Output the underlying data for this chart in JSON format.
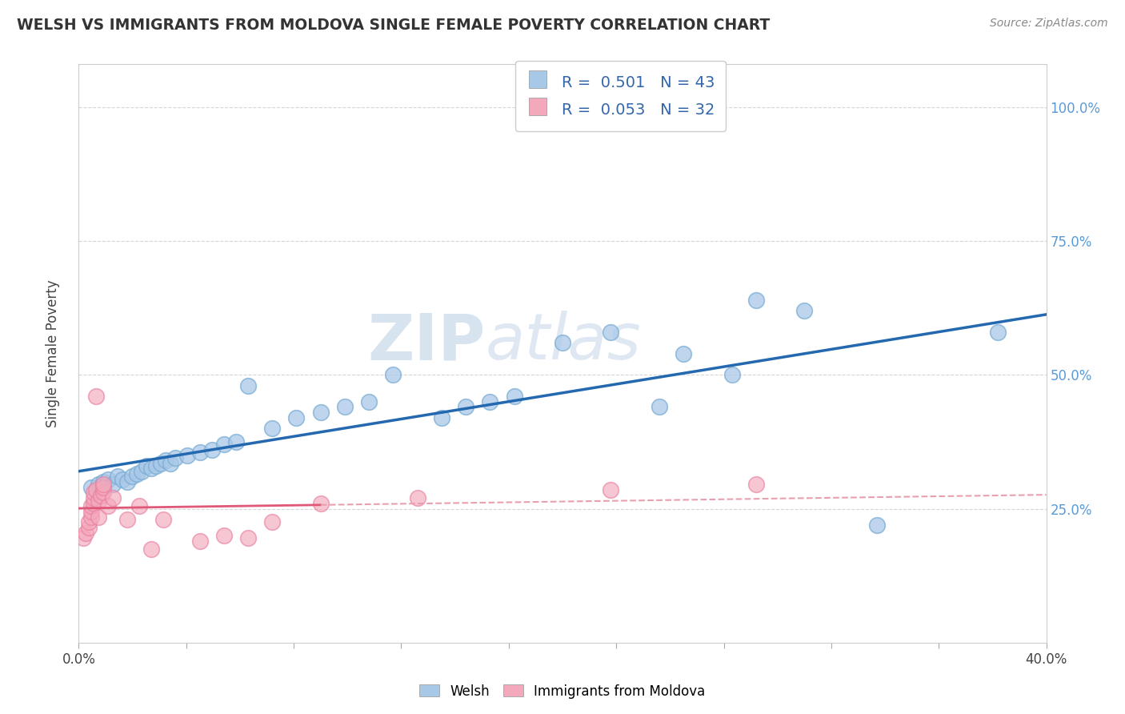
{
  "title": "WELSH VS IMMIGRANTS FROM MOLDOVA SINGLE FEMALE POVERTY CORRELATION CHART",
  "source": "Source: ZipAtlas.com",
  "ylabel": "Single Female Poverty",
  "ytick_values": [
    0.25,
    0.5,
    0.75,
    1.0
  ],
  "xlim": [
    0.0,
    0.4
  ],
  "ylim": [
    0.0,
    1.08
  ],
  "legend_welsh_r": "0.501",
  "legend_welsh_n": "43",
  "legend_moldova_r": "0.053",
  "legend_moldova_n": "32",
  "welsh_color": "#a8c8e8",
  "welsh_edge_color": "#7aadd4",
  "welsh_line_color": "#2468b0",
  "moldova_color": "#f4a8bc",
  "moldova_edge_color": "#e880a0",
  "moldova_line_color": "#e05878",
  "moldova_dash_color": "#e8a0b0",
  "watermark": "ZIPatlas",
  "welsh_x": [
    0.005,
    0.008,
    0.01,
    0.012,
    0.014,
    0.016,
    0.018,
    0.02,
    0.022,
    0.024,
    0.026,
    0.028,
    0.03,
    0.032,
    0.034,
    0.036,
    0.038,
    0.04,
    0.045,
    0.05,
    0.055,
    0.06,
    0.065,
    0.07,
    0.08,
    0.09,
    0.1,
    0.11,
    0.12,
    0.13,
    0.15,
    0.16,
    0.17,
    0.18,
    0.2,
    0.22,
    0.24,
    0.25,
    0.27,
    0.28,
    0.3,
    0.33,
    0.38
  ],
  "welsh_y": [
    0.29,
    0.295,
    0.3,
    0.305,
    0.295,
    0.31,
    0.305,
    0.3,
    0.31,
    0.315,
    0.32,
    0.33,
    0.325,
    0.33,
    0.335,
    0.34,
    0.335,
    0.345,
    0.35,
    0.355,
    0.36,
    0.37,
    0.375,
    0.48,
    0.4,
    0.42,
    0.43,
    0.44,
    0.45,
    0.5,
    0.42,
    0.44,
    0.45,
    0.46,
    0.56,
    0.58,
    0.44,
    0.54,
    0.5,
    0.64,
    0.62,
    0.22,
    0.58
  ],
  "moldova_x": [
    0.002,
    0.003,
    0.004,
    0.004,
    0.005,
    0.005,
    0.005,
    0.006,
    0.006,
    0.006,
    0.007,
    0.007,
    0.008,
    0.008,
    0.009,
    0.01,
    0.01,
    0.01,
    0.012,
    0.014,
    0.02,
    0.025,
    0.03,
    0.035,
    0.05,
    0.06,
    0.07,
    0.08,
    0.1,
    0.14,
    0.22,
    0.28
  ],
  "moldova_y": [
    0.195,
    0.205,
    0.215,
    0.225,
    0.235,
    0.245,
    0.255,
    0.26,
    0.27,
    0.28,
    0.285,
    0.46,
    0.235,
    0.265,
    0.275,
    0.28,
    0.29,
    0.295,
    0.255,
    0.27,
    0.23,
    0.255,
    0.175,
    0.23,
    0.19,
    0.2,
    0.195,
    0.225,
    0.26,
    0.27,
    0.285,
    0.295
  ],
  "background_color": "#ffffff",
  "grid_color": "#cccccc",
  "xtick_count": 9
}
